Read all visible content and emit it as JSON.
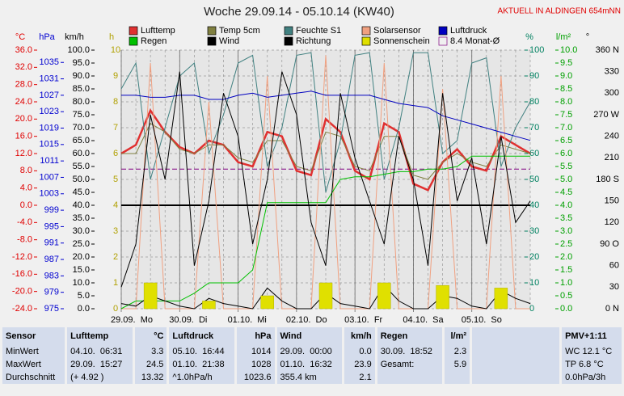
{
  "header": {
    "title": "Woche 29.09.14 - 05.10.14 (KW40)",
    "location": "AKTUELL IN ALDINGEN 654mNN"
  },
  "chart_data": {
    "type": "line",
    "xlim": [
      0,
      168
    ],
    "xticks": [
      {
        "value": 0,
        "label": "29.09.  Mo"
      },
      {
        "value": 24,
        "label": "30.09.  Di"
      },
      {
        "value": 48,
        "label": "01.10.  Mi"
      },
      {
        "value": 72,
        "label": "02.10.  Do"
      },
      {
        "value": 96,
        "label": "03.10.  Fr"
      },
      {
        "value": 120,
        "label": "04.10.  Sa"
      },
      {
        "value": 144,
        "label": "05.10.  So"
      }
    ],
    "axes": [
      {
        "label": "°C",
        "color": "#e00000",
        "lim": [
          -24,
          36
        ],
        "ticks": [
          {
            "value": 36,
            "label": "36.0"
          },
          {
            "value": 32,
            "label": "32.0"
          },
          {
            "value": 28,
            "label": "28.0"
          },
          {
            "value": 24,
            "label": "24.0"
          },
          {
            "value": 20,
            "label": "20.0"
          },
          {
            "value": 16,
            "label": "16.0"
          },
          {
            "value": 12,
            "label": "12.0"
          },
          {
            "value": 8,
            "label": "8.0"
          },
          {
            "value": 4,
            "label": "4.0"
          },
          {
            "value": 0,
            "label": "0.0"
          },
          {
            "value": -4,
            "label": "-4.0"
          },
          {
            "value": -8,
            "label": "-8.0"
          },
          {
            "value": -12,
            "label": "-12.0"
          },
          {
            "value": -16,
            "label": "-16.0"
          },
          {
            "value": -20,
            "label": "-20.0"
          },
          {
            "value": -24,
            "label": "-24.0"
          }
        ]
      },
      {
        "label": "hPa",
        "color": "#0000d0",
        "lim": [
          975,
          1038
        ],
        "ticks": [
          1035,
          1031,
          1027,
          1023,
          1019,
          1015,
          1011,
          1007,
          1003,
          999,
          995,
          991,
          987,
          983,
          979,
          975
        ]
      },
      {
        "label": "km/h",
        "color": "#000000",
        "lim": [
          0,
          100
        ],
        "ticks": [
          {
            "value": 100,
            "label": "100.0"
          },
          {
            "value": 95,
            "label": "95.0"
          },
          {
            "value": 90,
            "label": "90.0"
          },
          {
            "value": 85,
            "label": "85.0"
          },
          {
            "value": 80,
            "label": "80.0"
          },
          {
            "value": 75,
            "label": "75.0"
          },
          {
            "value": 70,
            "label": "70.0"
          },
          {
            "value": 65,
            "label": "65.0"
          },
          {
            "value": 60,
            "label": "60.0"
          },
          {
            "value": 55,
            "label": "55.0"
          },
          {
            "value": 50,
            "label": "50.0"
          },
          {
            "value": 45,
            "label": "45.0"
          },
          {
            "value": 40,
            "label": "40.0"
          },
          {
            "value": 35,
            "label": "35.0"
          },
          {
            "value": 30,
            "label": "30.0"
          },
          {
            "value": 25,
            "label": "25.0"
          },
          {
            "value": 20,
            "label": "20.0"
          },
          {
            "value": 15,
            "label": "15.0"
          },
          {
            "value": 10,
            "label": "10.0"
          },
          {
            "value": 5,
            "label": "5.0"
          },
          {
            "value": 0,
            "label": "0.0"
          }
        ]
      },
      {
        "label": "h",
        "color": "#b0a000",
        "lim": [
          0,
          10
        ],
        "ticks": [
          10,
          9,
          8,
          7,
          6,
          5,
          4,
          3,
          2,
          1,
          0
        ]
      },
      {
        "label": "%",
        "color": "#008060",
        "lim": [
          0,
          100
        ],
        "ticks": [
          100,
          90,
          80,
          70,
          60,
          50,
          40,
          30,
          20,
          10,
          0
        ]
      },
      {
        "label": "l/m²",
        "color": "#00a000",
        "lim": [
          0,
          10
        ],
        "ticks": [
          {
            "value": 10,
            "label": "10.0"
          },
          9.5,
          {
            "value": 9,
            "label": "9.0"
          },
          8.5,
          {
            "value": 8,
            "label": "8.0"
          },
          7.5,
          {
            "value": 7,
            "label": "7.0"
          },
          6.5,
          {
            "value": 6,
            "label": "6.0"
          },
          5.5,
          {
            "value": 5,
            "label": "5.0"
          },
          4.5,
          {
            "value": 4,
            "label": "4.0"
          },
          3.5,
          {
            "value": 3,
            "label": "3.0"
          },
          2.5,
          {
            "value": 2,
            "label": "2.0"
          },
          1.5,
          {
            "value": 1,
            "label": "1.0"
          },
          0.5,
          {
            "value": 0,
            "label": "0.0"
          }
        ]
      },
      {
        "label": "°",
        "color": "#000000",
        "lim": [
          0,
          360
        ],
        "ticks": [
          {
            "value": 360,
            "label": "360 N"
          },
          330,
          300,
          {
            "value": 270,
            "label": "270 W"
          },
          240,
          210,
          {
            "value": 180,
            "label": "180 S"
          },
          150,
          120,
          {
            "value": 90,
            "label": "90 O"
          },
          60,
          30,
          {
            "value": 0,
            "label": "0 N"
          }
        ]
      }
    ],
    "x": [
      0,
      6,
      12,
      18,
      24,
      30,
      36,
      42,
      48,
      54,
      60,
      66,
      72,
      78,
      84,
      90,
      96,
      102,
      108,
      114,
      120,
      126,
      132,
      138,
      144,
      150,
      156,
      162,
      168
    ],
    "series": [
      {
        "name": "Lufttemp",
        "color": "#e03030",
        "axis": 0,
        "values": [
          12,
          14,
          22,
          17,
          13.5,
          12,
          15,
          14,
          10,
          9,
          17,
          16,
          8,
          7,
          20,
          17,
          8,
          6,
          19,
          17,
          5,
          3.5,
          10,
          13,
          9,
          8,
          16,
          14,
          12
        ]
      },
      {
        "name": "Temp 5cm",
        "color": "#808040",
        "axis": 0,
        "values": [
          12,
          12,
          19,
          17,
          13,
          12,
          14,
          14,
          11,
          10,
          15,
          15,
          9,
          8,
          17,
          16,
          9,
          8,
          16,
          16,
          7,
          6,
          10,
          12,
          10,
          9,
          14,
          13,
          12
        ]
      },
      {
        "name": "Feuchte S1",
        "color": "#408080",
        "axis": 4,
        "values": [
          85,
          95,
          50,
          70,
          90,
          95,
          60,
          75,
          95,
          98,
          55,
          70,
          98,
          99,
          45,
          65,
          98,
          99,
          50,
          70,
          99,
          99,
          60,
          65,
          95,
          97,
          55,
          70,
          80
        ]
      },
      {
        "name": "Solarsensor",
        "color": "#f0a080",
        "axis": 4,
        "values": [
          0,
          0,
          95,
          0,
          0,
          0,
          80,
          0,
          0,
          0,
          90,
          0,
          0,
          0,
          98,
          0,
          0,
          0,
          95,
          0,
          0,
          0,
          85,
          0,
          0,
          0,
          90,
          0,
          0
        ]
      },
      {
        "name": "Luftdruck",
        "color": "#0000c0",
        "axis": 1,
        "values": [
          1027,
          1027,
          1026.5,
          1026.5,
          1027,
          1027,
          1026,
          1026,
          1027,
          1027.5,
          1026.5,
          1027,
          1027.5,
          1028,
          1027,
          1027,
          1027,
          1027,
          1026,
          1025,
          1024.5,
          1024,
          1022,
          1021,
          1020,
          1019,
          1018,
          1017,
          1016
        ]
      },
      {
        "name": "Regen",
        "color": "#00c000",
        "axis": 5,
        "values": [
          0,
          0.3,
          0.3,
          0.3,
          0.3,
          0.6,
          1.0,
          1.0,
          1.0,
          1.5,
          4.1,
          4.1,
          4.1,
          4.1,
          4.1,
          5.0,
          5.1,
          5.1,
          5.2,
          5.3,
          5.3,
          5.4,
          5.4,
          5.5,
          5.9,
          5.9,
          5.9,
          5.9,
          5.9
        ]
      },
      {
        "name": "Wind",
        "color": "#000000",
        "axis": 2,
        "values": [
          2,
          1,
          5,
          3,
          1,
          0,
          4,
          2,
          1,
          0,
          8,
          3,
          0,
          0,
          6,
          2,
          1,
          0,
          9,
          3,
          0,
          0,
          5,
          4,
          1,
          0,
          7,
          4,
          2
        ]
      },
      {
        "name": "Richtung",
        "color": "#000000",
        "axis": 6,
        "values": [
          30,
          90,
          270,
          180,
          330,
          60,
          150,
          300,
          240,
          90,
          180,
          330,
          270,
          120,
          60,
          300,
          210,
          150,
          90,
          240,
          180,
          60,
          300,
          150,
          210,
          90,
          240,
          120,
          150
        ]
      },
      {
        "name": "Sonnenschein",
        "color": "#e0e000",
        "axis": 3,
        "bars": true,
        "values": [
          0,
          0,
          1.0,
          0,
          0,
          0,
          0.3,
          0,
          0,
          0,
          0.5,
          0,
          0,
          0,
          1.0,
          0,
          0,
          0,
          1.0,
          0,
          0,
          0,
          0.9,
          0,
          0,
          0,
          0.8,
          0,
          0
        ]
      }
    ],
    "mean": {
      "name": "8.4 Monat-Ø",
      "value": 8.4,
      "axis": 0,
      "color": "#800080"
    }
  },
  "table": {
    "header": [
      "Sensor",
      "Lufttemp",
      "°C",
      "Luftdruck",
      "hPa",
      "Wind",
      "km/h",
      "Regen",
      "l/m²",
      "PMV+1:11"
    ],
    "rows": [
      [
        "MinWert",
        "04.10.  06:31",
        "3.3",
        "05.10.  16:44",
        "1014",
        "29.09.  00:00",
        "0.0",
        "30.09.  18:52",
        "2.3",
        "WC 12.1 °C"
      ],
      [
        "MaxWert",
        "29.09.  15:27",
        "24.5",
        "01.10.  21:38",
        "1028",
        "01.10.  16:32",
        "23.9",
        "Gesamt:",
        "5.9",
        "TP 6.8 °C"
      ],
      [
        "Durchschnitt",
        "(+ 4.92 )",
        "13.32",
        "^1.0hPa/h",
        "1023.6",
        "355.4 km",
        "2.1",
        null,
        null,
        "0.0hPa/3h"
      ]
    ]
  }
}
